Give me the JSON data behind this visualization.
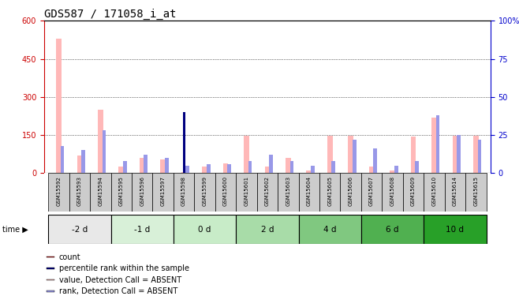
{
  "title": "GDS587 / 171058_i_at",
  "samples": [
    "GSM15592",
    "GSM15593",
    "GSM15594",
    "GSM15595",
    "GSM15596",
    "GSM15597",
    "GSM15598",
    "GSM15599",
    "GSM15600",
    "GSM15601",
    "GSM15602",
    "GSM15603",
    "GSM15604",
    "GSM15605",
    "GSM15606",
    "GSM15607",
    "GSM15608",
    "GSM15609",
    "GSM15610",
    "GSM15614",
    "GSM15615"
  ],
  "pink_values": [
    530,
    70,
    250,
    25,
    60,
    55,
    5,
    25,
    40,
    148,
    25,
    60,
    10,
    148,
    148,
    25,
    10,
    145,
    220,
    148,
    148
  ],
  "blue_rank_values": [
    18,
    15,
    28,
    8,
    12,
    10,
    5,
    6,
    6,
    8,
    12,
    8,
    5,
    8,
    22,
    16,
    5,
    8,
    38,
    25,
    22
  ],
  "red_count_values": [
    0,
    0,
    0,
    0,
    0,
    0,
    30,
    0,
    0,
    0,
    0,
    0,
    0,
    0,
    0,
    0,
    0,
    0,
    0,
    0,
    0
  ],
  "dark_blue_rank_values": [
    0,
    0,
    0,
    0,
    0,
    0,
    40,
    0,
    0,
    0,
    0,
    0,
    0,
    0,
    0,
    0,
    0,
    0,
    0,
    0,
    0
  ],
  "groups": [
    {
      "label": "-2 d",
      "indices": [
        0,
        1,
        2
      ],
      "color": "#e8e8e8"
    },
    {
      "label": "-1 d",
      "indices": [
        3,
        4,
        5
      ],
      "color": "#d8f0d8"
    },
    {
      "label": "0 d",
      "indices": [
        6,
        7,
        8
      ],
      "color": "#c8ecc8"
    },
    {
      "label": "2 d",
      "indices": [
        9,
        10,
        11
      ],
      "color": "#a8dca8"
    },
    {
      "label": "4 d",
      "indices": [
        12,
        13,
        14
      ],
      "color": "#80c880"
    },
    {
      "label": "6 d",
      "indices": [
        15,
        16,
        17
      ],
      "color": "#50b050"
    },
    {
      "label": "10 d",
      "indices": [
        18,
        19,
        20
      ],
      "color": "#28a028"
    }
  ],
  "ylim_left": [
    0,
    600
  ],
  "ylim_right": [
    0,
    100
  ],
  "yticks_left": [
    0,
    150,
    300,
    450,
    600
  ],
  "yticks_right": [
    0,
    25,
    50,
    75,
    100
  ],
  "pink_color": "#ffb8b8",
  "light_blue_color": "#9898e8",
  "red_color": "#cc0000",
  "dark_blue_color": "#000080",
  "axis_left_color": "#cc0000",
  "axis_right_color": "#0000cc",
  "grid_color": "#000000",
  "sample_bg_color": "#cccccc",
  "title_fontsize": 10,
  "tick_fontsize": 7,
  "label_fontsize": 7
}
